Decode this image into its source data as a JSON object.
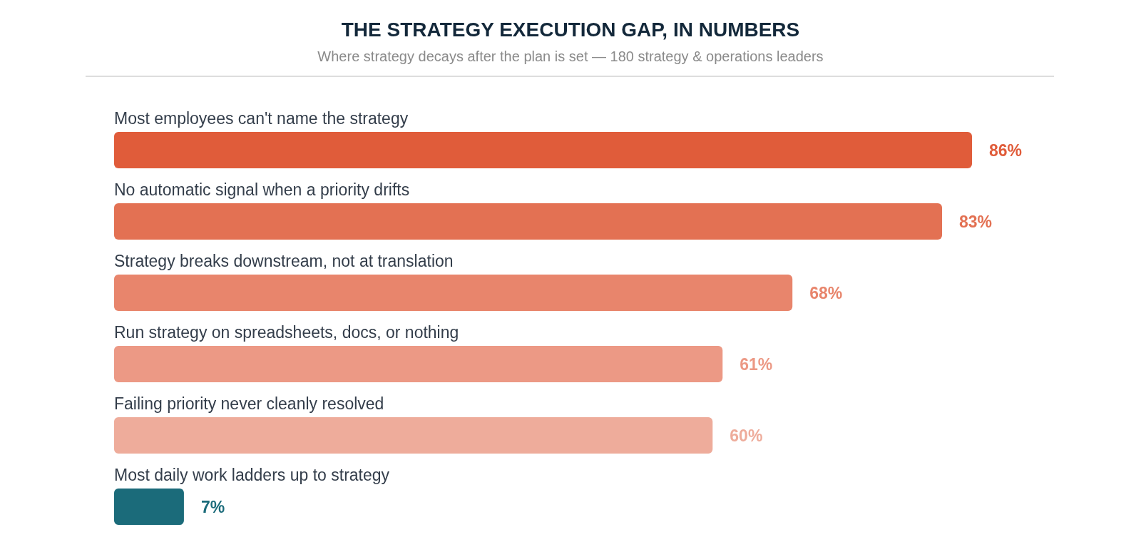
{
  "chart_data": {
    "type": "bar",
    "orientation": "horizontal",
    "tick_labels": false,
    "title": "THE STRATEGY EXECUTION GAP, IN NUMBERS",
    "subtitle": "Where strategy decays after the plan is set — 180 strategy & operations leaders",
    "categories": [
      "Most employees can't name the strategy",
      "No automatic signal when a priority drifts",
      "Strategy breaks downstream, not at translation",
      "Run strategy on spreadsheets, docs, or nothing",
      "Failing priority never cleanly resolved",
      "Most daily work ladders up to strategy"
    ],
    "values": [
      86,
      83,
      68,
      61,
      60,
      7
    ],
    "value_labels": [
      "86%",
      "83%",
      "68%",
      "61%",
      "60%",
      "7%"
    ],
    "colors": [
      "#e05c3a",
      "#e37153",
      "#e8856c",
      "#ec9985",
      "#eeac9b",
      "#1b6b7a"
    ]
  }
}
